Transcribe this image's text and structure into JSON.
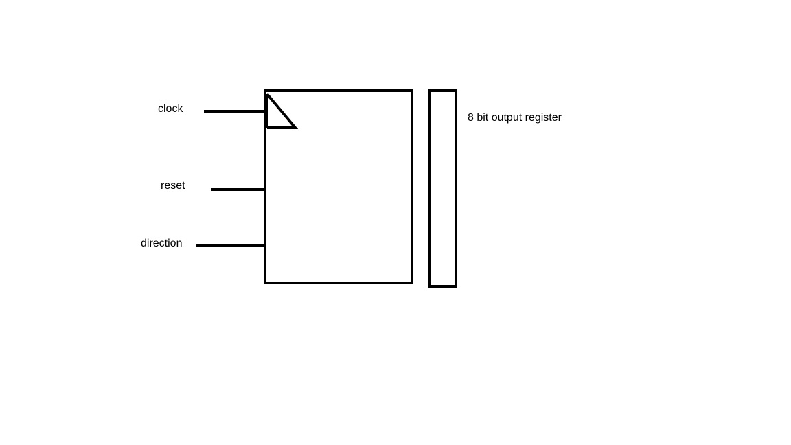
{
  "diagram": {
    "inputs": {
      "clock": "clock",
      "reset": "reset",
      "direction": "direction"
    },
    "register_label": "8 bit output register",
    "stroke_color": "#000000",
    "background_color": "#ffffff"
  }
}
